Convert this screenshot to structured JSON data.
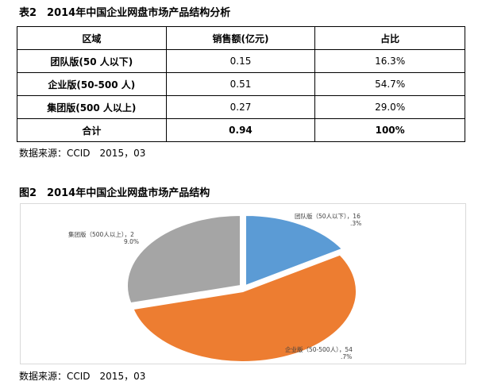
{
  "table": {
    "caption": "表2　2014年中国企业网盘市场产品结构分析",
    "headers": [
      "区域",
      "销售额(亿元)",
      "占比"
    ],
    "rows": [
      [
        "团队版(50 人以下)",
        "0.15",
        "16.3%"
      ],
      [
        "企业版(50-500 人)",
        "0.51",
        "54.7%"
      ],
      [
        "集团版(500 人以上)",
        "0.27",
        "29.0%"
      ]
    ],
    "total": [
      "合计",
      "0.94",
      "100%"
    ],
    "source": "数据来源：CCID　2015，03"
  },
  "figure": {
    "caption": "图2　2014年中国企业网盘市场产品结构",
    "source": "数据来源：CCID　2015，03"
  },
  "chart_data": {
    "type": "pie",
    "categories": [
      "团队版（50人以下）",
      "企业版（50-500人）",
      "集团版（500人以上）"
    ],
    "values": [
      16.3,
      54.7,
      29.0
    ],
    "colors": [
      "#5b9bd5",
      "#ed7d31",
      "#a5a5a5"
    ],
    "data_labels": [
      [
        "团队版（50人以下），16",
        ".3%"
      ],
      [
        "企业版（50-500人），54",
        ".7%"
      ],
      [
        "集团版（500人以上），2",
        "9.0%"
      ]
    ],
    "title": "",
    "legend": "none"
  }
}
